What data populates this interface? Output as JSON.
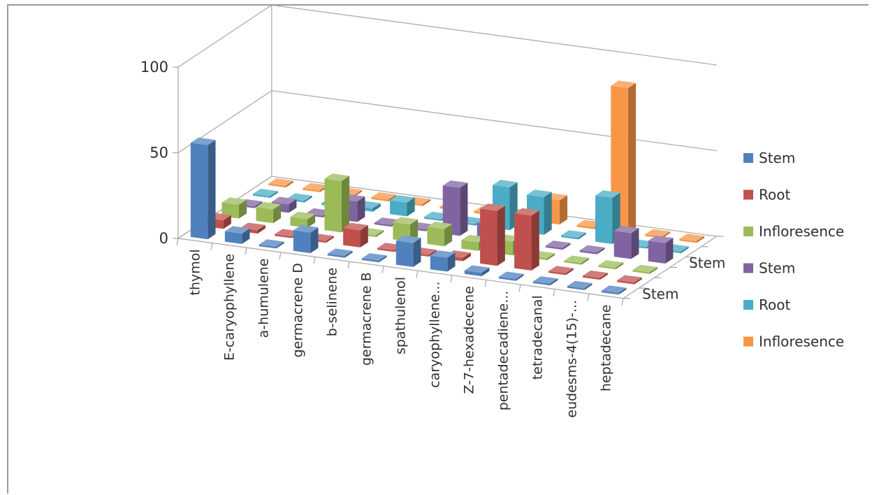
{
  "chart_data": {
    "type": "bar",
    "title": "",
    "xlabel": "",
    "ylabel": "",
    "ylim": [
      0,
      100
    ],
    "yticks": [
      0,
      50,
      100
    ],
    "categories": [
      "thymol",
      "E-caryophyllene",
      "a-humulene",
      "germacrene D",
      "b-selinene",
      "germacrene B",
      "spathulenol",
      "caryophyllene...",
      "Z-7-hexadecene",
      "pentadecadiene...",
      "tetradecanal",
      "eudesms-4(15)-...",
      "heptadecane"
    ],
    "depth_labels": [
      "Stem",
      "Stem"
    ],
    "series": [
      {
        "name": "Stem",
        "color": "#4f81bd",
        "values": [
          55,
          6,
          1,
          12,
          1,
          1,
          14,
          8,
          2,
          1,
          1,
          1,
          1
        ]
      },
      {
        "name": "Root",
        "color": "#c0504d",
        "values": [
          5,
          2,
          1,
          1,
          10,
          1,
          1,
          2,
          32,
          32,
          1,
          1,
          1
        ]
      },
      {
        "name": "Infloresence",
        "color": "#9bbb59",
        "values": [
          8,
          8,
          5,
          30,
          1,
          10,
          10,
          5,
          8,
          1,
          1,
          1,
          1
        ]
      },
      {
        "name": "Stem",
        "color": "#8064a2",
        "values": [
          1,
          5,
          1,
          12,
          1,
          1,
          28,
          9,
          1,
          1,
          1,
          15,
          12
        ]
      },
      {
        "name": "Root",
        "color": "#4bacc6",
        "values": [
          1,
          1,
          1,
          2,
          8,
          1,
          1,
          25,
          22,
          1,
          27,
          1,
          1
        ]
      },
      {
        "name": "Infloresence",
        "color": "#f79646",
        "values": [
          1,
          1,
          1,
          1,
          1,
          1,
          1,
          1,
          14,
          1,
          85,
          1,
          1
        ]
      }
    ],
    "legend": "right"
  }
}
